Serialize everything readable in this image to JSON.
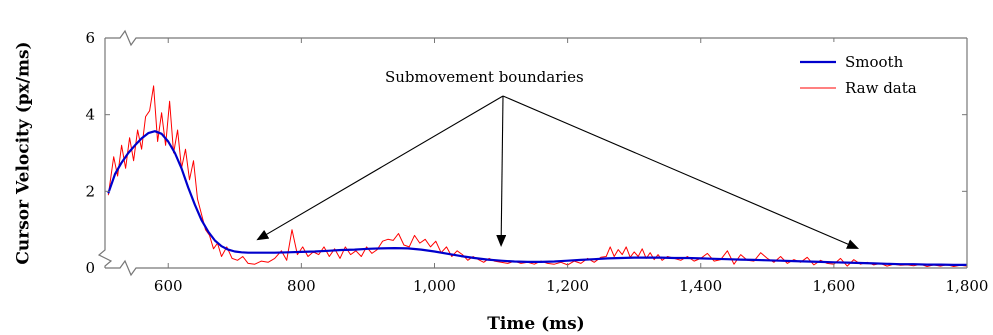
{
  "chart_data": {
    "type": "line",
    "title": "",
    "xlabel": "Time (ms)",
    "ylabel": "Cursor Velocity (px/ms)",
    "xlim": [
      505,
      1800
    ],
    "ylim": [
      0,
      6
    ],
    "axis_breaks": [
      "x",
      "y"
    ],
    "x_ticks": [
      600,
      800,
      1000,
      1200,
      1400,
      1600,
      1800
    ],
    "x_tick_labels": [
      "600",
      "800",
      "1,000",
      "1,200",
      "1,400",
      "1,600",
      "1,800"
    ],
    "y_ticks": [
      0,
      2,
      4,
      6
    ],
    "y_tick_labels": [
      "0",
      "2",
      "4",
      "6"
    ],
    "grid": false,
    "legend": {
      "position": "top-right",
      "entries": [
        "Smooth",
        "Raw data"
      ]
    },
    "colors": {
      "smooth": "#0000cc",
      "raw": "#ff0000"
    },
    "series": [
      {
        "name": "Smooth",
        "x": [
          510,
          520,
          530,
          540,
          550,
          560,
          570,
          580,
          590,
          600,
          610,
          620,
          630,
          640,
          650,
          660,
          670,
          680,
          690,
          700,
          710,
          720,
          730,
          740,
          750,
          760,
          780,
          800,
          820,
          840,
          860,
          880,
          900,
          920,
          940,
          960,
          980,
          1000,
          1020,
          1040,
          1060,
          1080,
          1100,
          1120,
          1140,
          1160,
          1180,
          1200,
          1220,
          1240,
          1260,
          1280,
          1300,
          1320,
          1340,
          1360,
          1380,
          1400,
          1420,
          1440,
          1460,
          1480,
          1500,
          1520,
          1540,
          1560,
          1580,
          1600,
          1620,
          1640,
          1660,
          1680,
          1700,
          1720,
          1740,
          1760,
          1780,
          1800
        ],
        "values": [
          1.95,
          2.45,
          2.75,
          3.0,
          3.2,
          3.38,
          3.52,
          3.57,
          3.5,
          3.3,
          3.0,
          2.6,
          2.1,
          1.65,
          1.25,
          0.95,
          0.72,
          0.57,
          0.48,
          0.43,
          0.41,
          0.4,
          0.4,
          0.4,
          0.4,
          0.4,
          0.41,
          0.42,
          0.43,
          0.45,
          0.47,
          0.48,
          0.5,
          0.51,
          0.52,
          0.51,
          0.48,
          0.43,
          0.37,
          0.31,
          0.26,
          0.22,
          0.19,
          0.17,
          0.16,
          0.16,
          0.17,
          0.19,
          0.21,
          0.23,
          0.25,
          0.26,
          0.27,
          0.27,
          0.27,
          0.26,
          0.26,
          0.25,
          0.24,
          0.23,
          0.22,
          0.21,
          0.2,
          0.19,
          0.18,
          0.17,
          0.16,
          0.15,
          0.14,
          0.13,
          0.12,
          0.11,
          0.1,
          0.1,
          0.09,
          0.09,
          0.08,
          0.08
        ]
      },
      {
        "name": "Raw data",
        "x": [
          510,
          518,
          524,
          530,
          536,
          542,
          548,
          554,
          560,
          566,
          572,
          578,
          584,
          590,
          596,
          602,
          608,
          614,
          620,
          626,
          632,
          638,
          644,
          650,
          656,
          662,
          668,
          674,
          680,
          688,
          696,
          704,
          712,
          720,
          730,
          740,
          750,
          760,
          770,
          778,
          786,
          794,
          802,
          810,
          818,
          826,
          834,
          842,
          850,
          858,
          866,
          874,
          882,
          890,
          898,
          906,
          914,
          922,
          930,
          938,
          946,
          954,
          962,
          970,
          978,
          986,
          994,
          1002,
          1010,
          1018,
          1026,
          1034,
          1042,
          1050,
          1058,
          1066,
          1074,
          1082,
          1090,
          1100,
          1110,
          1120,
          1130,
          1140,
          1150,
          1160,
          1170,
          1180,
          1190,
          1200,
          1210,
          1220,
          1230,
          1240,
          1250,
          1258,
          1264,
          1270,
          1276,
          1282,
          1288,
          1294,
          1300,
          1306,
          1312,
          1318,
          1324,
          1330,
          1336,
          1342,
          1350,
          1360,
          1370,
          1380,
          1390,
          1400,
          1410,
          1420,
          1430,
          1440,
          1450,
          1460,
          1470,
          1480,
          1490,
          1500,
          1510,
          1520,
          1530,
          1540,
          1550,
          1560,
          1570,
          1580,
          1590,
          1600,
          1610,
          1620,
          1630,
          1640,
          1650,
          1660,
          1670,
          1680,
          1690,
          1700,
          1710,
          1720,
          1730,
          1740,
          1750,
          1760,
          1770,
          1780,
          1790,
          1800
        ],
        "values": [
          1.9,
          2.9,
          2.4,
          3.2,
          2.6,
          3.4,
          2.8,
          3.6,
          3.1,
          3.95,
          4.1,
          4.75,
          3.3,
          4.05,
          3.2,
          4.35,
          3.0,
          3.6,
          2.6,
          3.1,
          2.3,
          2.8,
          1.8,
          1.4,
          1.0,
          0.85,
          0.5,
          0.65,
          0.3,
          0.55,
          0.25,
          0.2,
          0.3,
          0.12,
          0.1,
          0.18,
          0.15,
          0.25,
          0.45,
          0.2,
          1.0,
          0.35,
          0.55,
          0.3,
          0.42,
          0.35,
          0.55,
          0.3,
          0.5,
          0.25,
          0.55,
          0.35,
          0.45,
          0.3,
          0.55,
          0.38,
          0.48,
          0.7,
          0.75,
          0.72,
          0.9,
          0.6,
          0.55,
          0.85,
          0.65,
          0.75,
          0.55,
          0.7,
          0.4,
          0.55,
          0.3,
          0.45,
          0.35,
          0.2,
          0.3,
          0.22,
          0.15,
          0.25,
          0.18,
          0.15,
          0.12,
          0.18,
          0.12,
          0.15,
          0.1,
          0.18,
          0.12,
          0.1,
          0.15,
          0.08,
          0.18,
          0.12,
          0.25,
          0.15,
          0.28,
          0.3,
          0.55,
          0.3,
          0.48,
          0.35,
          0.55,
          0.28,
          0.42,
          0.3,
          0.5,
          0.25,
          0.4,
          0.22,
          0.35,
          0.2,
          0.3,
          0.25,
          0.2,
          0.3,
          0.18,
          0.25,
          0.38,
          0.18,
          0.22,
          0.45,
          0.1,
          0.35,
          0.2,
          0.18,
          0.4,
          0.25,
          0.15,
          0.3,
          0.12,
          0.22,
          0.15,
          0.28,
          0.08,
          0.2,
          0.12,
          0.1,
          0.25,
          0.05,
          0.22,
          0.1,
          0.15,
          0.08,
          0.12,
          0.05,
          0.1,
          0.07,
          0.08,
          0.06,
          0.1,
          0.04,
          0.08,
          0.05,
          0.09,
          0.04,
          0.07,
          0.05
        ]
      }
    ],
    "annotations": [
      {
        "text": "Submovement boundaries",
        "arrows_to": [
          {
            "x": 735,
            "y": 0.75
          },
          {
            "x": 1100,
            "y": 0.6
          },
          {
            "x": 1635,
            "y": 0.52
          }
        ]
      }
    ]
  }
}
